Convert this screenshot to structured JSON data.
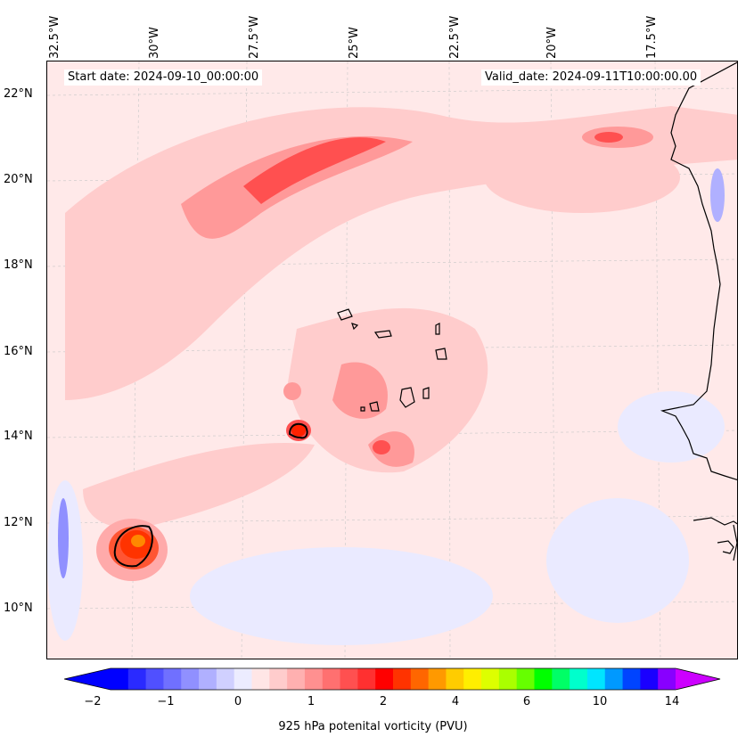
{
  "map": {
    "start_date": "Start date: 2024-09-10_00:00:00",
    "valid_date": "Valid_date: 2024-09-11T10:00:00.00",
    "lon_ticks": [
      "32.5°W",
      "30°W",
      "27.5°W",
      "25°W",
      "22.5°W",
      "20°W",
      "17.5°W"
    ],
    "lat_ticks": [
      "22°N",
      "20°N",
      "18°N",
      "16°N",
      "14°N",
      "12°N",
      "10°N"
    ]
  },
  "colorbar": {
    "label": "925 hPa potenital vorticity (PVU)",
    "ticks": [
      "−2",
      "−1",
      "0",
      "1",
      "2",
      "4",
      "6",
      "10",
      "14"
    ],
    "colors": [
      "#0000ff",
      "#2a2aff",
      "#5050ff",
      "#7070ff",
      "#9090ff",
      "#b0b0ff",
      "#d0d0ff",
      "#ececff",
      "#ffe6e6",
      "#ffcccc",
      "#ffb0b0",
      "#ff9090",
      "#ff7070",
      "#ff5050",
      "#ff3030",
      "#ff0000",
      "#ff3300",
      "#ff6600",
      "#ff9900",
      "#ffcc00",
      "#ffee00",
      "#ddff00",
      "#aaff00",
      "#66ff00",
      "#00ff00",
      "#00ff66",
      "#00ffcc",
      "#00e5ff",
      "#0099ff",
      "#0044ff",
      "#1a00ff",
      "#8800ff"
    ]
  }
}
